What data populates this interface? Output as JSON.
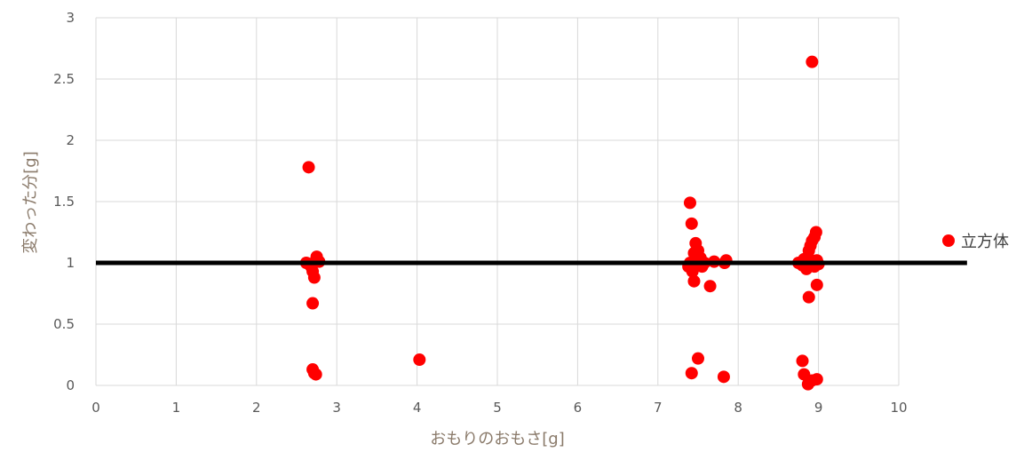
{
  "chart_data": {
    "type": "scatter",
    "title": "",
    "xlabel": "おもりのおもさ[g]",
    "ylabel": "変わった分[g]",
    "xlim": [
      0,
      10
    ],
    "ylim": [
      0,
      3
    ],
    "x_ticks": [
      "0",
      "1",
      "2",
      "3",
      "4",
      "5",
      "6",
      "7",
      "8",
      "9",
      "10"
    ],
    "y_ticks": [
      "0",
      "0.5",
      "1",
      "1.5",
      "2",
      "2.5",
      "3"
    ],
    "grid": true,
    "legend_position": "right",
    "reference_line": {
      "y": 1,
      "x_start": 0,
      "x_end": 10.85,
      "color": "#000000"
    },
    "series": [
      {
        "name": "立方体",
        "color": "#ff0000",
        "points": [
          [
            2.65,
            1.78
          ],
          [
            2.62,
            1.0
          ],
          [
            2.68,
            0.97
          ],
          [
            2.7,
            0.93
          ],
          [
            2.72,
            0.88
          ],
          [
            2.74,
            1.02
          ],
          [
            2.75,
            1.05
          ],
          [
            2.78,
            1.01
          ],
          [
            2.7,
            0.67
          ],
          [
            2.7,
            0.13
          ],
          [
            2.72,
            0.1
          ],
          [
            2.74,
            0.09
          ],
          [
            4.03,
            0.21
          ],
          [
            7.4,
            1.49
          ],
          [
            7.42,
            1.32
          ],
          [
            7.47,
            1.16
          ],
          [
            7.45,
            1.08
          ],
          [
            7.5,
            1.1
          ],
          [
            7.53,
            1.04
          ],
          [
            7.38,
            0.97
          ],
          [
            7.4,
            1.0
          ],
          [
            7.43,
            0.93
          ],
          [
            7.45,
            0.85
          ],
          [
            7.48,
            0.98
          ],
          [
            7.5,
            1.02
          ],
          [
            7.55,
            0.97
          ],
          [
            7.58,
            1.0
          ],
          [
            7.65,
            0.81
          ],
          [
            7.7,
            1.01
          ],
          [
            7.83,
            1.0
          ],
          [
            7.85,
            1.02
          ],
          [
            7.42,
            0.1
          ],
          [
            7.5,
            0.22
          ],
          [
            7.82,
            0.07
          ],
          [
            8.92,
            2.64
          ],
          [
            8.75,
            1.0
          ],
          [
            8.8,
            0.98
          ],
          [
            8.82,
            1.03
          ],
          [
            8.85,
            0.95
          ],
          [
            8.87,
            1.05
          ],
          [
            8.88,
            1.1
          ],
          [
            8.9,
            1.14
          ],
          [
            8.92,
            1.18
          ],
          [
            8.95,
            1.21
          ],
          [
            8.97,
            1.25
          ],
          [
            8.93,
            1.0
          ],
          [
            8.95,
            0.97
          ],
          [
            8.98,
            1.02
          ],
          [
            9.0,
            0.99
          ],
          [
            8.88,
            0.72
          ],
          [
            8.98,
            0.82
          ],
          [
            8.8,
            0.2
          ],
          [
            8.82,
            0.09
          ],
          [
            8.87,
            0.01
          ],
          [
            8.92,
            0.04
          ],
          [
            8.98,
            0.05
          ]
        ]
      }
    ]
  }
}
